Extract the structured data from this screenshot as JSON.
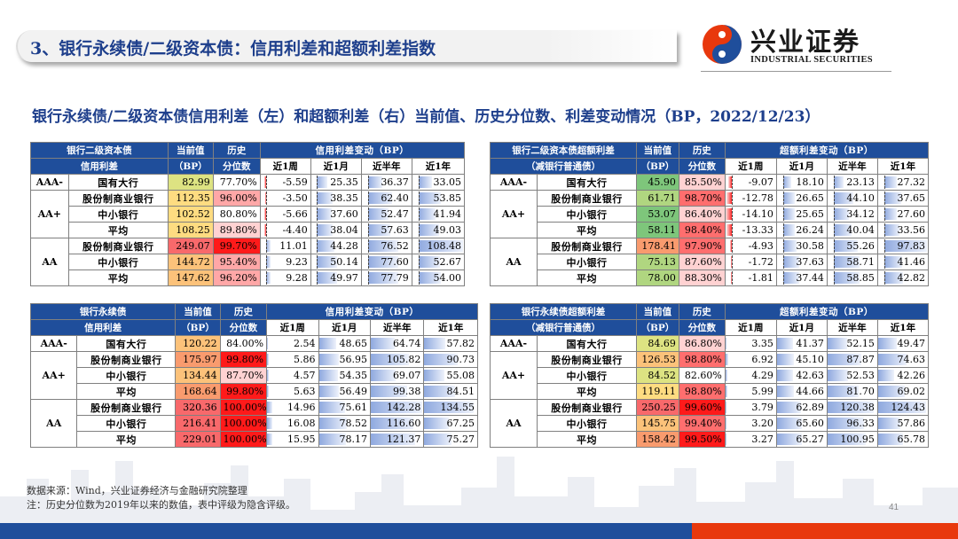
{
  "header": {
    "title": "3、银行永续债/二级资本债：信用利差和超额利差指数",
    "logo_cn": "兴业证券",
    "logo_en": "INDUSTRIAL SECURITIES"
  },
  "subtitle": "银行永续债/二级资本债信用利差（左）和超额利差（右）当前值、历史分位数、利差变动情况（BP，2022/12/23）",
  "colors": {
    "brand_blue": "#1f4e9b",
    "accent_red": "#e8380d"
  },
  "tables": [
    {
      "id": "t1",
      "head": {
        "name1": "银行二级资本债",
        "name2": "信用利差",
        "cur1": "当前值",
        "cur2": "（BP）",
        "hist1": "历史",
        "hist2": "分位数",
        "span": "信用利差变动（BP）"
      },
      "periods": [
        "近1周",
        "近1月",
        "近半年",
        "近1年"
      ],
      "scale": [
        -15,
        110
      ],
      "groups": [
        {
          "grade": "AAA-",
          "rows": [
            {
              "bank": "国有大行",
              "cur": "82.99",
              "pct": "77.70%",
              "chg": [
                -5.59,
                25.35,
                36.37,
                33.05
              ]
            }
          ]
        },
        {
          "grade": "AA+",
          "rows": [
            {
              "bank": "股份制商业银行",
              "cur": "112.35",
              "pct": "96.00%",
              "chg": [
                -3.5,
                38.35,
                62.4,
                53.85
              ]
            },
            {
              "bank": "中小银行",
              "cur": "102.52",
              "pct": "80.80%",
              "chg": [
                -5.66,
                37.6,
                52.47,
                41.94
              ]
            },
            {
              "bank": "平均",
              "cur": "108.25",
              "pct": "89.80%",
              "chg": [
                -4.4,
                38.04,
                57.63,
                49.03
              ]
            }
          ]
        },
        {
          "grade": "AA",
          "rows": [
            {
              "bank": "股份制商业银行",
              "cur": "249.07",
              "pct": "99.70%",
              "chg": [
                11.01,
                44.28,
                76.52,
                108.48
              ]
            },
            {
              "bank": "中小银行",
              "cur": "144.72",
              "pct": "95.40%",
              "chg": [
                9.23,
                50.14,
                77.6,
                52.67
              ]
            },
            {
              "bank": "平均",
              "cur": "147.62",
              "pct": "96.20%",
              "chg": [
                9.28,
                49.97,
                77.79,
                54.0
              ]
            }
          ]
        }
      ]
    },
    {
      "id": "t2",
      "head": {
        "name1": "银行二级资本债超额利差",
        "name2": "（减银行普通债）",
        "cur1": "当前值",
        "cur2": "（BP）",
        "hist1": "历史",
        "hist2": "分位数",
        "span": "超额利差变动（BP）"
      },
      "periods": [
        "近1周",
        "近1月",
        "近半年",
        "近1年"
      ],
      "scale": [
        -15,
        100
      ],
      "groups": [
        {
          "grade": "AAA-",
          "rows": [
            {
              "bank": "国有大行",
              "cur": "45.90",
              "pct": "85.50%",
              "chg": [
                -9.07,
                18.1,
                23.13,
                27.32
              ]
            }
          ]
        },
        {
          "grade": "AA+",
          "rows": [
            {
              "bank": "股份制商业银行",
              "cur": "61.71",
              "pct": "98.70%",
              "chg": [
                -12.78,
                26.65,
                44.1,
                37.65
              ]
            },
            {
              "bank": "中小银行",
              "cur": "53.07",
              "pct": "86.40%",
              "chg": [
                -14.1,
                25.65,
                34.12,
                27.6
              ]
            },
            {
              "bank": "平均",
              "cur": "58.11",
              "pct": "98.40%",
              "chg": [
                -13.33,
                26.24,
                40.04,
                33.56
              ]
            }
          ]
        },
        {
          "grade": "AA",
          "rows": [
            {
              "bank": "股份制商业银行",
              "cur": "178.41",
              "pct": "97.90%",
              "chg": [
                -4.93,
                30.58,
                55.26,
                97.83
              ]
            },
            {
              "bank": "中小银行",
              "cur": "75.13",
              "pct": "87.60%",
              "chg": [
                -1.72,
                37.63,
                58.71,
                41.46
              ]
            },
            {
              "bank": "平均",
              "cur": "78.00",
              "pct": "88.30%",
              "chg": [
                -1.81,
                37.44,
                58.85,
                42.82
              ]
            }
          ]
        }
      ]
    },
    {
      "id": "t3",
      "head": {
        "name1": "银行永续债",
        "name2": "信用利差",
        "cur1": "当前值",
        "cur2": "（BP）",
        "hist1": "历史",
        "hist2": "分位数",
        "span": "信用利差变动（BP）"
      },
      "periods": [
        "近1周",
        "近1月",
        "近半年",
        "近1年"
      ],
      "scale": [
        0,
        145
      ],
      "groups": [
        {
          "grade": "AAA-",
          "rows": [
            {
              "bank": "国有大行",
              "cur": "120.22",
              "pct": "84.00%",
              "chg": [
                2.54,
                48.65,
                64.74,
                57.82
              ]
            }
          ]
        },
        {
          "grade": "AA+",
          "rows": [
            {
              "bank": "股份制商业银行",
              "cur": "175.97",
              "pct": "99.80%",
              "chg": [
                5.86,
                56.95,
                105.82,
                90.73
              ]
            },
            {
              "bank": "中小银行",
              "cur": "134.44",
              "pct": "87.70%",
              "chg": [
                4.57,
                54.35,
                69.07,
                55.08
              ]
            },
            {
              "bank": "平均",
              "cur": "168.64",
              "pct": "99.80%",
              "chg": [
                5.63,
                56.49,
                99.38,
                84.51
              ]
            }
          ]
        },
        {
          "grade": "AA",
          "rows": [
            {
              "bank": "股份制商业银行",
              "cur": "320.36",
              "pct": "100.00%",
              "chg": [
                14.96,
                75.61,
                142.28,
                134.55
              ]
            },
            {
              "bank": "中小银行",
              "cur": "216.41",
              "pct": "100.00%",
              "chg": [
                16.08,
                78.52,
                116.6,
                67.25
              ]
            },
            {
              "bank": "平均",
              "cur": "229.01",
              "pct": "100.00%",
              "chg": [
                15.95,
                78.17,
                121.37,
                75.27
              ]
            }
          ]
        }
      ]
    },
    {
      "id": "t4",
      "head": {
        "name1": "银行永续债超额利差",
        "name2": "（减银行普通债）",
        "cur1": "当前值",
        "cur2": "（BP）",
        "hist1": "历史",
        "hist2": "分位数",
        "span": "超额利差变动（BP）"
      },
      "periods": [
        "近1周",
        "近1月",
        "近半年",
        "近1年"
      ],
      "scale": [
        0,
        130
      ],
      "groups": [
        {
          "grade": "AAA-",
          "rows": [
            {
              "bank": "国有大行",
              "cur": "84.69",
              "pct": "86.80%",
              "chg": [
                3.35,
                41.37,
                52.15,
                49.47
              ]
            }
          ]
        },
        {
          "grade": "AA+",
          "rows": [
            {
              "bank": "股份制商业银行",
              "cur": "126.53",
              "pct": "98.80%",
              "chg": [
                6.92,
                45.1,
                87.87,
                74.63
              ]
            },
            {
              "bank": "中小银行",
              "cur": "84.52",
              "pct": "82.60%",
              "chg": [
                4.29,
                42.63,
                52.53,
                42.26
              ]
            },
            {
              "bank": "平均",
              "cur": "119.11",
              "pct": "98.80%",
              "chg": [
                5.99,
                44.66,
                81.7,
                69.02
              ]
            }
          ]
        },
        {
          "grade": "AA",
          "rows": [
            {
              "bank": "股份制商业银行",
              "cur": "250.25",
              "pct": "99.60%",
              "chg": [
                3.79,
                62.89,
                120.38,
                124.43
              ]
            },
            {
              "bank": "中小银行",
              "cur": "145.75",
              "pct": "99.40%",
              "chg": [
                3.2,
                65.6,
                96.33,
                57.86
              ]
            },
            {
              "bank": "平均",
              "cur": "158.42",
              "pct": "99.50%",
              "chg": [
                3.27,
                65.27,
                100.95,
                65.78
              ]
            }
          ]
        }
      ]
    }
  ],
  "notes": [
    "数据来源：Wind，兴业证券经济与金融研究院整理",
    "注：历史分位数为2019年以来的数值，表中评级为隐含评级。"
  ],
  "page_number": "41"
}
